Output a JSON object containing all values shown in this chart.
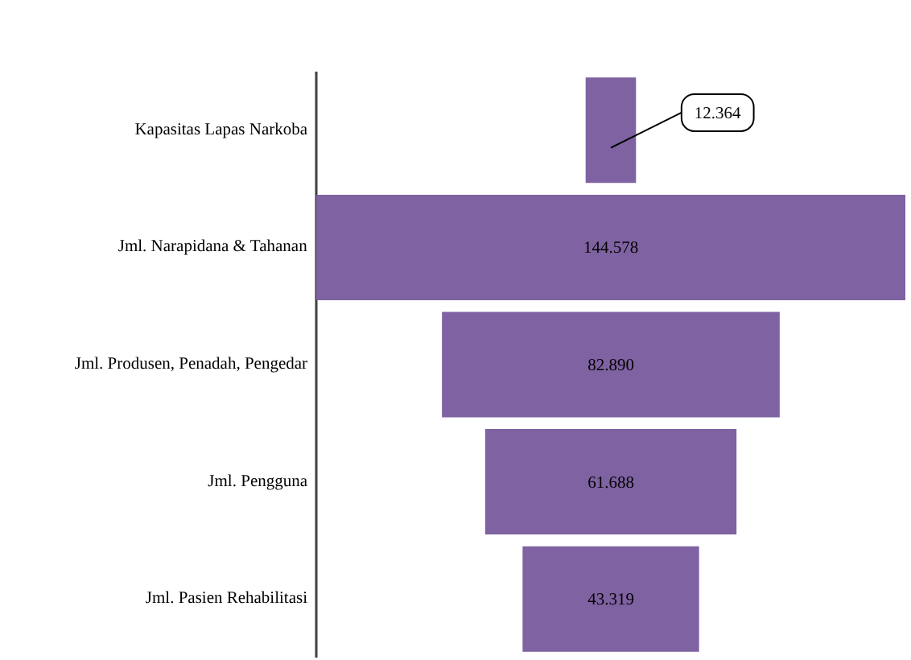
{
  "chart_data": {
    "type": "other",
    "categories": [
      "Kapasitas Lapas Narkoba",
      "Jml. Narapidana & Tahanan",
      "Jml. Produsen, Penadah, Pengedar",
      "Jml. Pengguna",
      "Jml. Pasien Rehabilitasi"
    ],
    "values": [
      12364,
      144578,
      82890,
      61688,
      43319
    ],
    "value_labels": [
      "12.364",
      "144.578",
      "82.890",
      "61.688",
      "43.319"
    ],
    "color": "#7f62a1"
  }
}
